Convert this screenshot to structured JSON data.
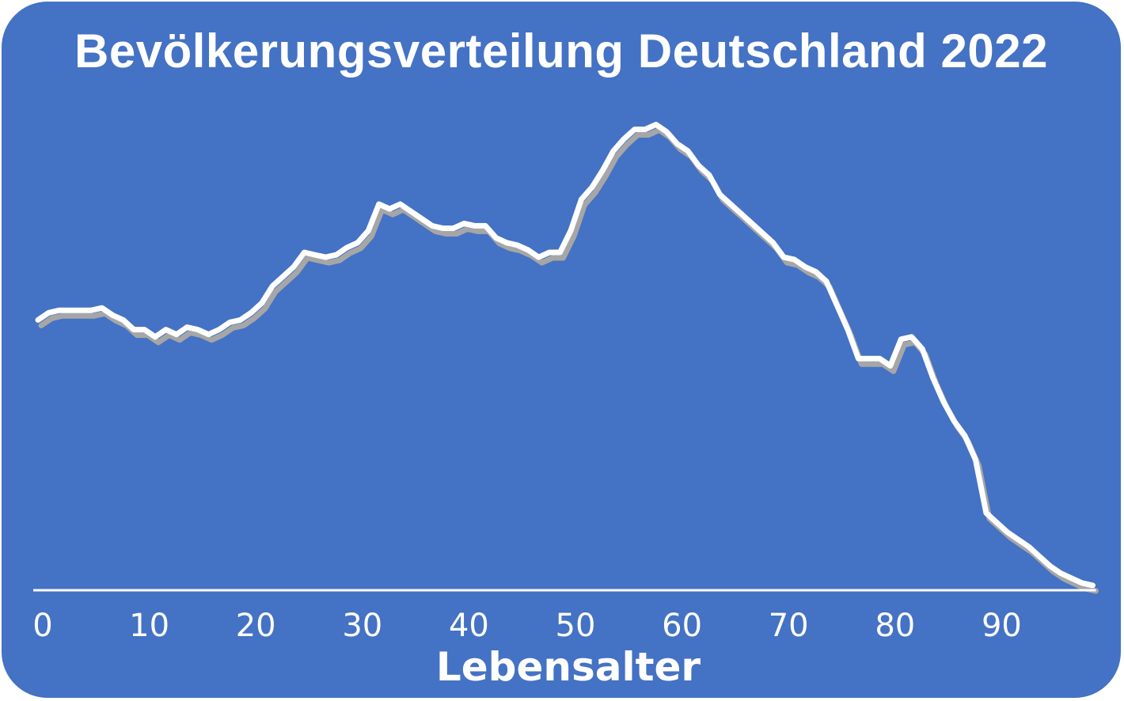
{
  "chart_data": {
    "type": "area",
    "title": "Bevölkerungsverteilung Deutschland 2022",
    "xlabel": "Lebensalter",
    "ylabel": "",
    "xlim": [
      0,
      99
    ],
    "ylim": [
      0,
      1.0
    ],
    "x_ticks": [
      0,
      10,
      20,
      30,
      40,
      50,
      60,
      70,
      80,
      90
    ],
    "x_tick_labels": [
      "0",
      "10",
      "20",
      "30",
      "40",
      "50",
      "60",
      "70",
      "80",
      "90"
    ],
    "y_axis_shown": false,
    "grid": false,
    "legend": "none",
    "colors": {
      "background": "#4472c4",
      "line": "#ffffff",
      "shadow": "#a6a6a6",
      "text": "#ffffff"
    },
    "x": [
      0,
      1,
      2,
      3,
      4,
      5,
      6,
      7,
      8,
      9,
      10,
      11,
      12,
      13,
      14,
      15,
      16,
      17,
      18,
      19,
      20,
      21,
      22,
      23,
      24,
      25,
      26,
      27,
      28,
      29,
      30,
      31,
      32,
      33,
      34,
      35,
      36,
      37,
      38,
      39,
      40,
      41,
      42,
      43,
      44,
      45,
      46,
      47,
      48,
      49,
      50,
      51,
      52,
      53,
      54,
      55,
      56,
      57,
      58,
      59,
      60,
      61,
      62,
      63,
      64,
      65,
      66,
      67,
      68,
      69,
      70,
      71,
      72,
      73,
      74,
      75,
      76,
      77,
      78,
      79,
      80,
      81,
      82,
      83,
      84,
      85,
      86,
      87,
      88,
      89,
      90,
      91,
      92,
      93,
      94,
      95,
      96,
      97,
      98,
      99
    ],
    "values": [
      0.56,
      0.575,
      0.58,
      0.58,
      0.58,
      0.58,
      0.585,
      0.57,
      0.56,
      0.54,
      0.54,
      0.525,
      0.54,
      0.53,
      0.545,
      0.54,
      0.53,
      0.54,
      0.555,
      0.56,
      0.575,
      0.595,
      0.63,
      0.65,
      0.67,
      0.7,
      0.695,
      0.69,
      0.695,
      0.71,
      0.72,
      0.745,
      0.8,
      0.79,
      0.8,
      0.785,
      0.77,
      0.755,
      0.75,
      0.75,
      0.76,
      0.755,
      0.755,
      0.73,
      0.72,
      0.715,
      0.705,
      0.69,
      0.7,
      0.7,
      0.745,
      0.81,
      0.835,
      0.87,
      0.91,
      0.935,
      0.955,
      0.955,
      0.965,
      0.95,
      0.925,
      0.91,
      0.88,
      0.86,
      0.82,
      0.8,
      0.78,
      0.76,
      0.74,
      0.72,
      0.69,
      0.685,
      0.67,
      0.66,
      0.64,
      0.59,
      0.54,
      0.48,
      0.48,
      0.48,
      0.465,
      0.52,
      0.525,
      0.5,
      0.44,
      0.39,
      0.35,
      0.32,
      0.27,
      0.16,
      0.14,
      0.12,
      0.105,
      0.09,
      0.07,
      0.05,
      0.035,
      0.025,
      0.015,
      0.01
    ]
  }
}
